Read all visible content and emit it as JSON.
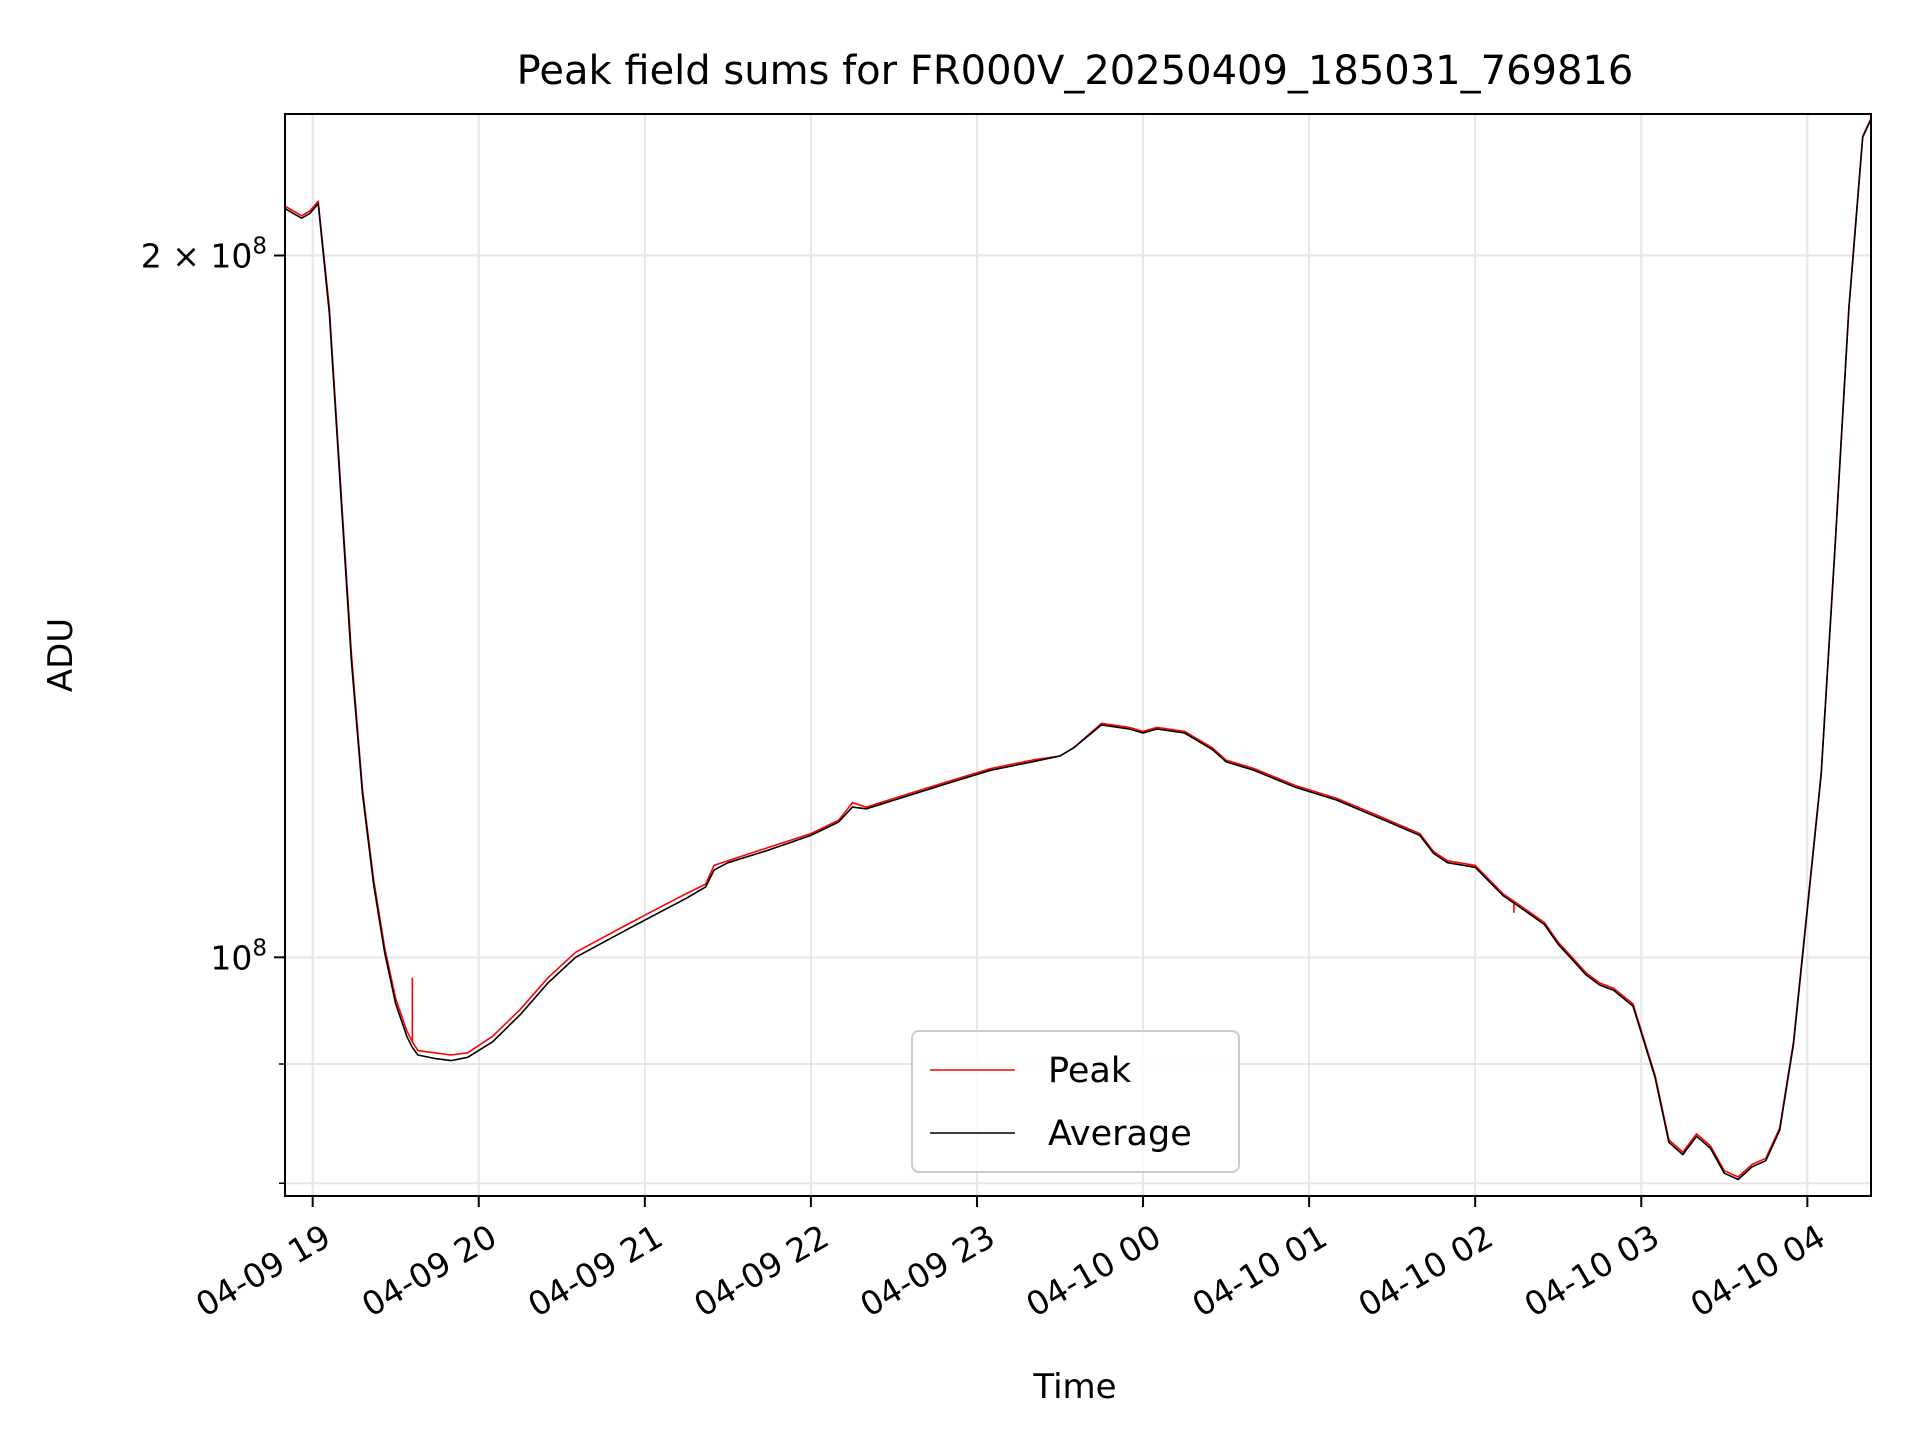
{
  "chart_data": {
    "type": "line",
    "title": "Peak field sums for FR000V_20250409_185031_769816",
    "xlabel": "Time",
    "ylabel": "ADU",
    "x_ticks": [
      "04-09 19",
      "04-09 20",
      "04-09 21",
      "04-09 22",
      "04-09 23",
      "04-10 00",
      "04-10 01",
      "04-10 02",
      "04-10 03",
      "04-10 04"
    ],
    "y_scale": "log",
    "y_major_ticks": [
      {
        "value": 200000000,
        "mant": "2 × 10",
        "exp": "8"
      },
      {
        "value": 100000000,
        "mant": "10",
        "exp": "8"
      }
    ],
    "y_minor_ticks": [
      90000000,
      80000000
    ],
    "xlim": [
      "2025-04-09 18:50",
      "2025-04-10 04:23"
    ],
    "ylim": [
      79000000,
      230000000
    ],
    "grid": true,
    "legend_position": "lower center",
    "colors": {
      "peak": "#ff0000",
      "average": "#000000",
      "grid": "#e6e6e6"
    },
    "series": [
      {
        "name": "Peak",
        "x": [
          "2025-04-09 18:50",
          "2025-04-09 18:53",
          "2025-04-09 18:56",
          "2025-04-09 18:59",
          "2025-04-09 19:02",
          "2025-04-09 19:06",
          "2025-04-09 19:10",
          "2025-04-09 19:14",
          "2025-04-09 19:18",
          "2025-04-09 19:22",
          "2025-04-09 19:26",
          "2025-04-09 19:30",
          "2025-04-09 19:34",
          "2025-04-09 19:36",
          "2025-04-09 19:38",
          "2025-04-09 19:44",
          "2025-04-09 19:50",
          "2025-04-09 19:56",
          "2025-04-09 20:05",
          "2025-04-09 20:15",
          "2025-04-09 20:25",
          "2025-04-09 20:35",
          "2025-04-09 20:45",
          "2025-04-09 20:55",
          "2025-04-09 21:05",
          "2025-04-09 21:15",
          "2025-04-09 21:22",
          "2025-04-09 21:25",
          "2025-04-09 21:30",
          "2025-04-09 21:45",
          "2025-04-09 22:00",
          "2025-04-09 22:10",
          "2025-04-09 22:15",
          "2025-04-09 22:20",
          "2025-04-09 22:35",
          "2025-04-09 22:50",
          "2025-04-09 23:05",
          "2025-04-09 23:20",
          "2025-04-09 23:30",
          "2025-04-09 23:35",
          "2025-04-09 23:45",
          "2025-04-09 23:55",
          "2025-04-10 00:00",
          "2025-04-10 00:05",
          "2025-04-10 00:15",
          "2025-04-10 00:25",
          "2025-04-10 00:30",
          "2025-04-10 00:40",
          "2025-04-10 00:55",
          "2025-04-10 01:10",
          "2025-04-10 01:25",
          "2025-04-10 01:40",
          "2025-04-10 01:45",
          "2025-04-10 01:50",
          "2025-04-10 02:00",
          "2025-04-10 02:10",
          "2025-04-10 02:15",
          "2025-04-10 02:20",
          "2025-04-10 02:25",
          "2025-04-10 02:30",
          "2025-04-10 02:35",
          "2025-04-10 02:40",
          "2025-04-10 02:45",
          "2025-04-10 02:50",
          "2025-04-10 02:57",
          "2025-04-10 03:05",
          "2025-04-10 03:10",
          "2025-04-10 03:15",
          "2025-04-10 03:20",
          "2025-04-10 03:25",
          "2025-04-10 03:30",
          "2025-04-10 03:35",
          "2025-04-10 03:40",
          "2025-04-10 03:45",
          "2025-04-10 03:50",
          "2025-04-10 03:55",
          "2025-04-10 04:00",
          "2025-04-10 04:05",
          "2025-04-10 04:10",
          "2025-04-10 04:15",
          "2025-04-10 04:20",
          "2025-04-10 04:23"
        ],
        "values": [
          210000000,
          209000000,
          208000000,
          209000000,
          211000000,
          190000000,
          160000000,
          135000000,
          118000000,
          108000000,
          101000000,
          96000000,
          93000000,
          92000000,
          91200000,
          91000000,
          90800000,
          91000000,
          92500000,
          95000000,
          98000000,
          100500000,
          102000000,
          103500000,
          105000000,
          106500000,
          107500000,
          109500000,
          110000000,
          111500000,
          113000000,
          114500000,
          116500000,
          116000000,
          117500000,
          119000000,
          120500000,
          121500000,
          122000000,
          123000000,
          126000000,
          125500000,
          125000000,
          125500000,
          125000000,
          123000000,
          121500000,
          120500000,
          118500000,
          117000000,
          115000000,
          113000000,
          111000000,
          110000000,
          109500000,
          106500000,
          105500000,
          104500000,
          103500000,
          101500000,
          100000000,
          98500000,
          97500000,
          97000000,
          95500000,
          89000000,
          83500000,
          82500000,
          84000000,
          83000000,
          81000000,
          80500000,
          81500000,
          82000000,
          84500000,
          92000000,
          105000000,
          120000000,
          150000000,
          190000000,
          225000000,
          229000000
        ],
        "spikes": [
          {
            "x": "2025-04-09 19:36",
            "y": 98000000
          },
          {
            "x": "2025-04-10 02:14",
            "y": 104500000
          }
        ]
      },
      {
        "name": "Average",
        "x": [
          "2025-04-09 18:50",
          "2025-04-09 18:53",
          "2025-04-09 18:56",
          "2025-04-09 18:59",
          "2025-04-09 19:02",
          "2025-04-09 19:06",
          "2025-04-09 19:10",
          "2025-04-09 19:14",
          "2025-04-09 19:18",
          "2025-04-09 19:22",
          "2025-04-09 19:26",
          "2025-04-09 19:30",
          "2025-04-09 19:34",
          "2025-04-09 19:36",
          "2025-04-09 19:38",
          "2025-04-09 19:44",
          "2025-04-09 19:50",
          "2025-04-09 19:56",
          "2025-04-09 20:05",
          "2025-04-09 20:15",
          "2025-04-09 20:25",
          "2025-04-09 20:35",
          "2025-04-09 20:45",
          "2025-04-09 20:55",
          "2025-04-09 21:05",
          "2025-04-09 21:15",
          "2025-04-09 21:22",
          "2025-04-09 21:25",
          "2025-04-09 21:30",
          "2025-04-09 21:45",
          "2025-04-09 22:00",
          "2025-04-09 22:10",
          "2025-04-09 22:15",
          "2025-04-09 22:20",
          "2025-04-09 22:35",
          "2025-04-09 22:50",
          "2025-04-09 23:05",
          "2025-04-09 23:20",
          "2025-04-09 23:30",
          "2025-04-09 23:35",
          "2025-04-09 23:45",
          "2025-04-09 23:55",
          "2025-04-10 00:00",
          "2025-04-10 00:05",
          "2025-04-10 00:15",
          "2025-04-10 00:25",
          "2025-04-10 00:30",
          "2025-04-10 00:40",
          "2025-04-10 00:55",
          "2025-04-10 01:10",
          "2025-04-10 01:25",
          "2025-04-10 01:40",
          "2025-04-10 01:45",
          "2025-04-10 01:50",
          "2025-04-10 02:00",
          "2025-04-10 02:10",
          "2025-04-10 02:15",
          "2025-04-10 02:20",
          "2025-04-10 02:25",
          "2025-04-10 02:30",
          "2025-04-10 02:35",
          "2025-04-10 02:40",
          "2025-04-10 02:45",
          "2025-04-10 02:50",
          "2025-04-10 02:57",
          "2025-04-10 03:05",
          "2025-04-10 03:10",
          "2025-04-10 03:15",
          "2025-04-10 03:20",
          "2025-04-10 03:25",
          "2025-04-10 03:30",
          "2025-04-10 03:35",
          "2025-04-10 03:40",
          "2025-04-10 03:45",
          "2025-04-10 03:50",
          "2025-04-10 03:55",
          "2025-04-10 04:00",
          "2025-04-10 04:05",
          "2025-04-10 04:10",
          "2025-04-10 04:15",
          "2025-04-10 04:20",
          "2025-04-10 04:23"
        ],
        "values": [
          209500000,
          208500000,
          207500000,
          208500000,
          210500000,
          189000000,
          159000000,
          134000000,
          117500000,
          107500000,
          100500000,
          95500000,
          92500000,
          91500000,
          90800000,
          90500000,
          90300000,
          90600000,
          92000000,
          94500000,
          97500000,
          100000000,
          101500000,
          103000000,
          104500000,
          106000000,
          107200000,
          109000000,
          109800000,
          111200000,
          112800000,
          114300000,
          116000000,
          115800000,
          117300000,
          118800000,
          120300000,
          121300000,
          122000000,
          123000000,
          125800000,
          125300000,
          124800000,
          125300000,
          124800000,
          122800000,
          121300000,
          120300000,
          118300000,
          116800000,
          114800000,
          112800000,
          110800000,
          109800000,
          109300000,
          106300000,
          105300000,
          104300000,
          103300000,
          101300000,
          99800000,
          98300000,
          97300000,
          96800000,
          95300000,
          88800000,
          83300000,
          82300000,
          83800000,
          82800000,
          80800000,
          80300000,
          81300000,
          81800000,
          84300000,
          91800000,
          104800000,
          119800000,
          149800000,
          189800000,
          224800000,
          228800000
        ]
      }
    ]
  }
}
